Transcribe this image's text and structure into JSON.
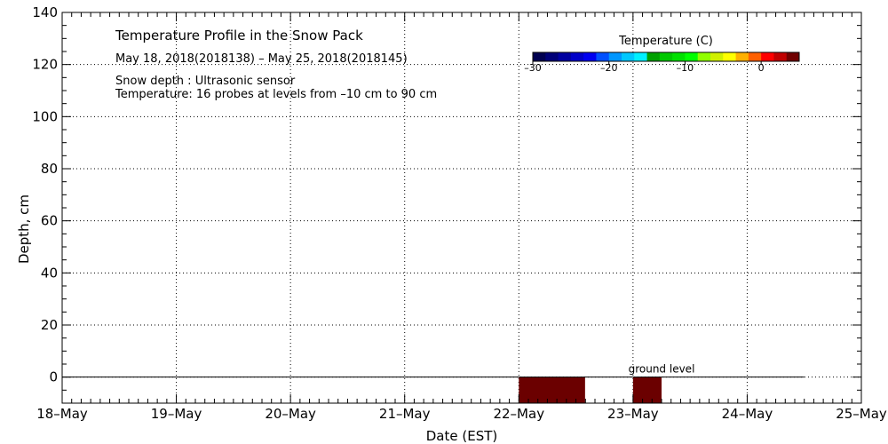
{
  "chart_data": {
    "type": "heatmap",
    "title": "Temperature Profile in the Snow Pack",
    "subtitle": "May 18, 2018(2018138) – May 25, 2018(2018145)",
    "notes": [
      "Snow depth : Ultrasonic sensor",
      "Temperature: 16 probes at levels from –10 cm to 90 cm"
    ],
    "xlabel": "Date (EST)",
    "ylabel": "Depth, cm",
    "x_ticks": [
      "18–May",
      "19–May",
      "20–May",
      "21–May",
      "22–May",
      "23–May",
      "24–May",
      "25–May"
    ],
    "xlim_days": [
      0,
      7
    ],
    "y_ticks": [
      "0",
      "20",
      "40",
      "60",
      "80",
      "100",
      "120",
      "140"
    ],
    "ylim": [
      -10,
      140
    ],
    "grid": true,
    "ground_level": {
      "label": "ground level",
      "depth": 0,
      "x_start_days": 0,
      "x_end_days": 6.5,
      "label_at_days": 5.25
    },
    "colorbar": {
      "title": "Temperature (C)",
      "range": [
        -30,
        5
      ],
      "tick_values": [
        -30,
        -20,
        -10,
        0
      ],
      "tick_labels": [
        "–30",
        "–20",
        "–10",
        "0"
      ],
      "colors": [
        "#000050",
        "#000078",
        "#0000a0",
        "#0000c8",
        "#0000f0",
        "#0050ff",
        "#0096ff",
        "#00c8ff",
        "#00f0ff",
        "#00a000",
        "#00c800",
        "#00e000",
        "#00ff00",
        "#90ff00",
        "#d0f000",
        "#ffff00",
        "#ffb000",
        "#ff6000",
        "#ff0000",
        "#c00000",
        "#700000"
      ]
    },
    "cells": [
      {
        "x_start_days": 4.0,
        "x_end_days": 4.58,
        "y_bottom": -10,
        "y_top": 0,
        "color": "#6b0000"
      },
      {
        "x_start_days": 5.0,
        "x_end_days": 5.25,
        "y_bottom": -10,
        "y_top": 0,
        "color": "#6b0000"
      }
    ]
  }
}
